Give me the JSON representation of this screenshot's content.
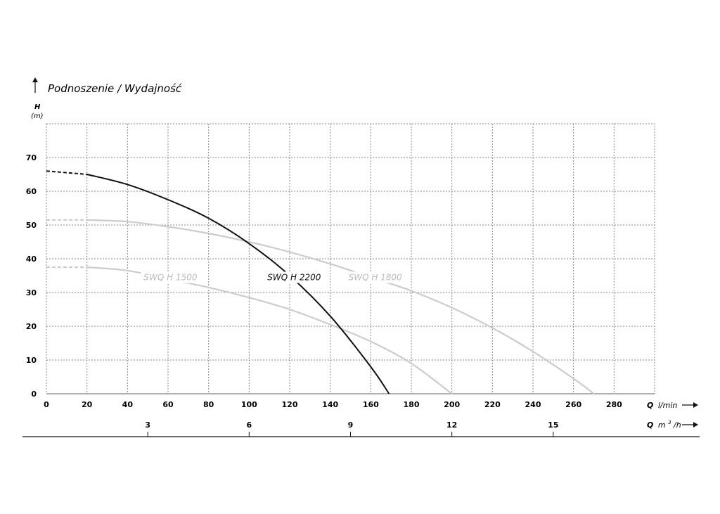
{
  "chart_data": {
    "type": "line",
    "title": "Podnoszenie / Wydajność",
    "ylabel": "H",
    "ylabel_unit": "(m)",
    "xlabel_q": "Q",
    "xlabel_unit": "l/min",
    "x2label_q": "Q",
    "x2label_unit_base": "m",
    "x2label_unit_exp": "3",
    "x2label_unit_tail": "/h",
    "xlim": [
      0,
      300
    ],
    "ylim": [
      0,
      80
    ],
    "x_ticks": [
      "0",
      "20",
      "40",
      "60",
      "80",
      "100",
      "120",
      "140",
      "160",
      "180",
      "200",
      "220",
      "240",
      "260",
      "280"
    ],
    "y_ticks": [
      "0",
      "10",
      "20",
      "30",
      "40",
      "50",
      "60",
      "70"
    ],
    "x2_ticks": [
      {
        "label": "3",
        "value": 3
      },
      {
        "label": "6",
        "value": 6
      },
      {
        "label": "9",
        "value": 9
      },
      {
        "label": "12",
        "value": 12
      },
      {
        "label": "15",
        "value": 15
      }
    ],
    "grid": true,
    "series": [
      {
        "name": "SWQ H 2200",
        "color": "#111111",
        "emphasis": true,
        "label_at": [
          109,
          34.5
        ],
        "x": [
          0,
          20,
          40,
          60,
          80,
          100,
          120,
          140,
          160,
          169
        ],
        "y": [
          66,
          65,
          62,
          57.5,
          52,
          44.5,
          35,
          23,
          8,
          0
        ]
      },
      {
        "name": "SWQ H 1800",
        "color": "#cccccc",
        "emphasis": false,
        "label_at": [
          149,
          34.5
        ],
        "x": [
          0,
          20,
          40,
          60,
          80,
          100,
          120,
          140,
          160,
          180,
          200,
          220,
          240,
          260,
          270
        ],
        "y": [
          51.5,
          51.5,
          51,
          49.5,
          47.5,
          45,
          42,
          38.5,
          34.5,
          30.5,
          25.5,
          19.5,
          12.5,
          4.5,
          0
        ]
      },
      {
        "name": "SWQ H 1500",
        "color": "#cccccc",
        "emphasis": false,
        "label_at": [
          48,
          34.5
        ],
        "x": [
          0,
          20,
          40,
          60,
          80,
          100,
          120,
          140,
          160,
          180,
          200
        ],
        "y": [
          37.5,
          37.5,
          36.5,
          34,
          31.5,
          28.5,
          25,
          20.5,
          15.5,
          9,
          0
        ]
      }
    ]
  }
}
